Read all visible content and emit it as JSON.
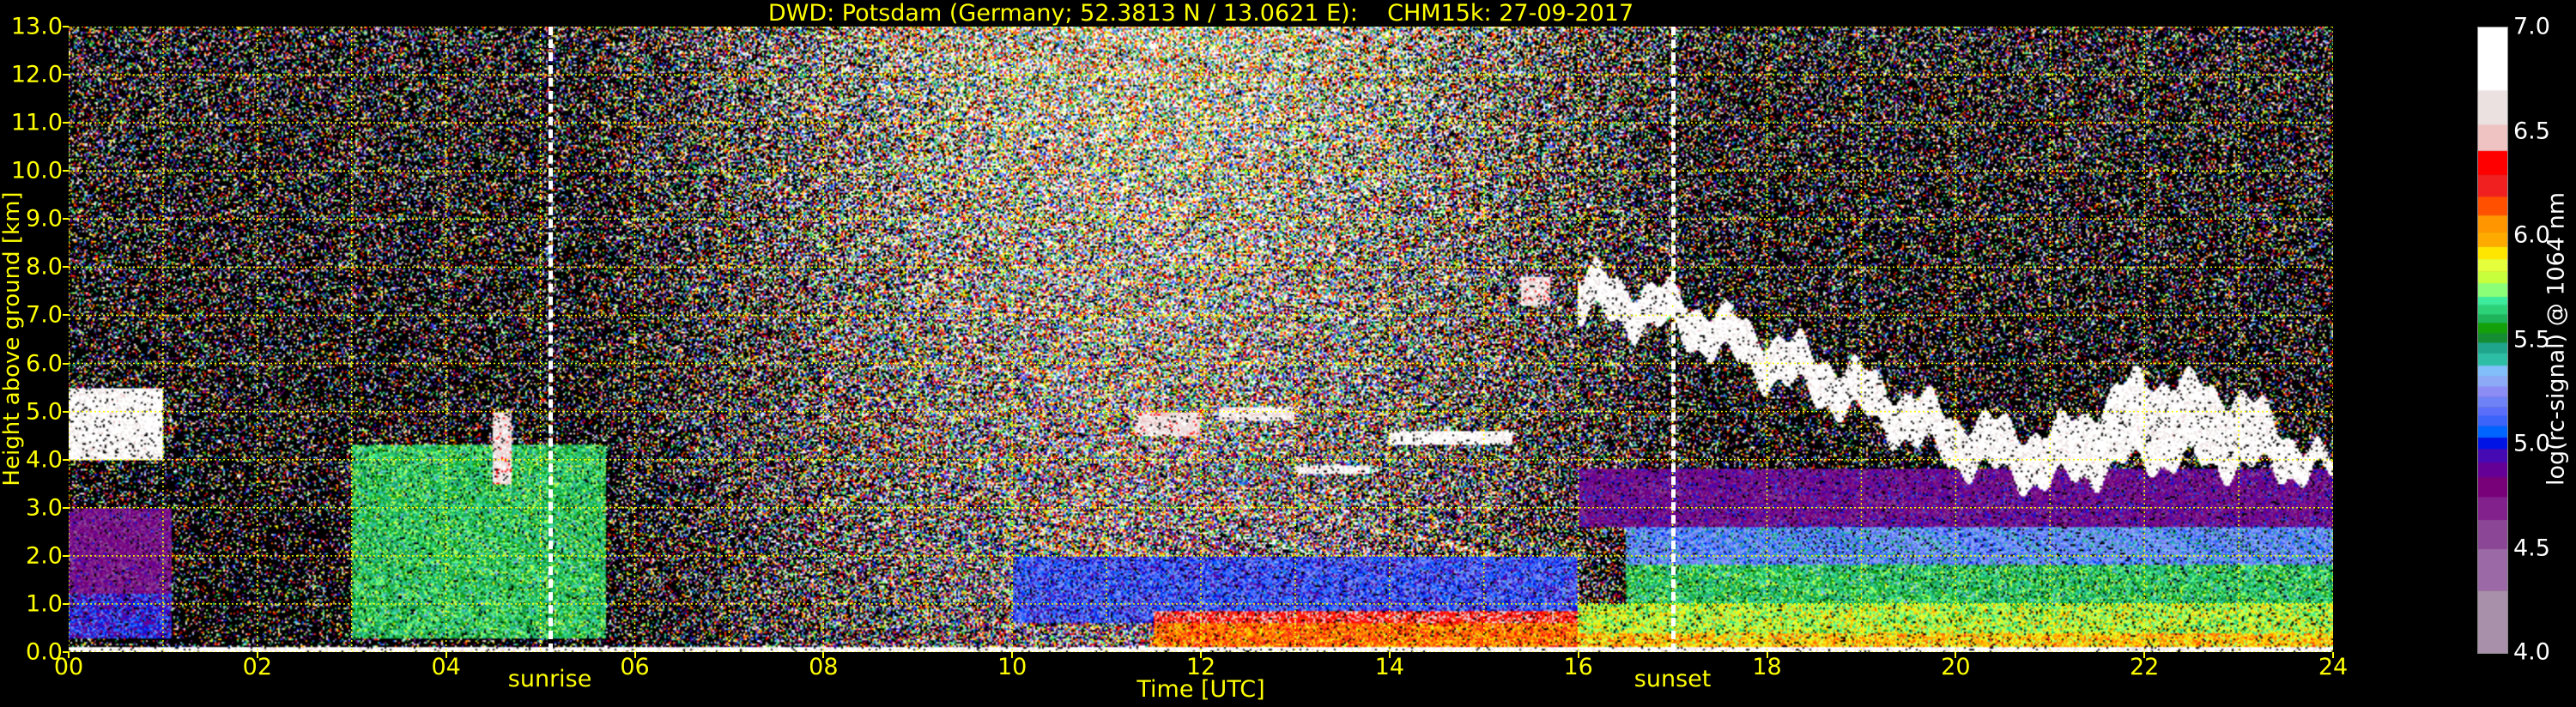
{
  "chart_data": {
    "type": "heatmap",
    "title": "DWD: Potsdam (Germany; 52.3813 N / 13.0621 E):    CHM15k: 27-09-2017",
    "xlabel": "Time [UTC]",
    "ylabel": "Height above ground [km]",
    "xlim": [
      0,
      24
    ],
    "ylim": [
      0,
      13
    ],
    "xticks": [
      "00",
      "02",
      "04",
      "06",
      "08",
      "10",
      "12",
      "14",
      "16",
      "18",
      "20",
      "22",
      "24"
    ],
    "xtick_values": [
      0,
      2,
      4,
      6,
      8,
      10,
      12,
      14,
      16,
      18,
      20,
      22,
      24
    ],
    "yticks": [
      "0.0",
      "1.0",
      "2.0",
      "3.0",
      "4.0",
      "5.0",
      "6.0",
      "7.0",
      "8.0",
      "9.0",
      "10.0",
      "11.0",
      "12.0",
      "13.0"
    ],
    "ytick_values": [
      0,
      1,
      2,
      3,
      4,
      5,
      6,
      7,
      8,
      9,
      10,
      11,
      12,
      13
    ],
    "grid": true,
    "grid_color": "#ffff00",
    "annotations": [
      {
        "label": "sunrise",
        "time": 5.1
      },
      {
        "label": "sunset",
        "time": 17.0
      }
    ],
    "colorbar": {
      "label": "log(rc-signal) @ 1064 nm",
      "range": [
        4.0,
        7.0
      ],
      "ticks": [
        "4.0",
        "4.5",
        "5.0",
        "5.5",
        "6.0",
        "6.5",
        "7.0"
      ],
      "tick_values": [
        4.0,
        4.5,
        5.0,
        5.5,
        6.0,
        6.5,
        7.0
      ],
      "bounds": [
        4.0,
        4.3,
        4.5,
        4.64,
        4.75,
        4.845,
        4.915,
        4.98,
        5.035,
        5.09,
        5.14,
        5.18,
        5.23,
        5.28,
        5.33,
        5.38,
        5.44,
        5.49,
        5.535,
        5.585,
        5.625,
        5.67,
        5.71,
        5.775,
        5.83,
        5.89,
        5.95,
        6.02,
        6.1,
        6.19,
        6.295,
        6.41,
        6.535,
        6.7,
        7.0
      ],
      "colors": [
        "#a890aa",
        "#9b69a5",
        "#8c4696",
        "#82208c",
        "#780078",
        "#640096",
        "#460ab4",
        "#0014e6",
        "#0064ff",
        "#3c64fa",
        "#5a6efa",
        "#6e82f5",
        "#8c8cf5",
        "#8caaf5",
        "#82befa",
        "#2dbea5",
        "#1ea58c",
        "#148c32",
        "#14a00a",
        "#1eb45a",
        "#2dd278",
        "#3ceb9b",
        "#8cff78",
        "#c8ff3c",
        "#e6ff3c",
        "#ffe600",
        "#ffaa00",
        "#ff9600",
        "#ff5000",
        "#f02020",
        "#ff0000",
        "#f0c3c3",
        "#ebe1e1",
        "#ffffff"
      ]
    },
    "layers": [
      {
        "name": "surface",
        "t": [
          0,
          24
        ],
        "z": [
          0.0,
          0.1
        ],
        "value": 6.8
      },
      {
        "t": [
          0,
          1.1
        ],
        "z": [
          0.3,
          1.2
        ],
        "value": 5.0
      },
      {
        "t": [
          0,
          1.1
        ],
        "z": [
          1.2,
          3.0
        ],
        "value": 4.75
      },
      {
        "t": [
          0,
          1.0
        ],
        "z": [
          4.0,
          5.5
        ],
        "value": 6.8
      },
      {
        "t": [
          3.0,
          5.7
        ],
        "z": [
          0.3,
          4.3
        ],
        "value": 5.6
      },
      {
        "t": [
          4.5,
          4.7
        ],
        "z": [
          3.5,
          5.0
        ],
        "value": 6.6
      },
      {
        "t": [
          10.0,
          16.0
        ],
        "z": [
          0.6,
          2.0
        ],
        "value": 5.1
      },
      {
        "t": [
          11.5,
          16.0
        ],
        "z": [
          0.1,
          0.6
        ],
        "value": 6.1
      },
      {
        "t": [
          11.5,
          16.0
        ],
        "z": [
          0.6,
          0.85
        ],
        "value": 6.35
      },
      {
        "t": [
          16.0,
          24.0
        ],
        "z": [
          0.1,
          0.4
        ],
        "value": 5.95
      },
      {
        "t": [
          16.0,
          24.0
        ],
        "z": [
          0.4,
          1.0
        ],
        "value": 5.8
      },
      {
        "t": [
          16.5,
          24.0
        ],
        "z": [
          1.0,
          1.8
        ],
        "value": 5.6
      },
      {
        "t": [
          16.5,
          24.0
        ],
        "z": [
          1.8,
          2.6
        ],
        "value": 5.25
      },
      {
        "t": [
          16.0,
          24.0
        ],
        "z": [
          2.6,
          3.8
        ],
        "value": 4.8
      },
      {
        "t": [
          11.3,
          12.0
        ],
        "z": [
          4.5,
          5.0
        ],
        "value": 6.6
      },
      {
        "t": [
          12.2,
          13.0
        ],
        "z": [
          4.8,
          5.1
        ],
        "value": 6.7
      },
      {
        "t": [
          13.0,
          13.8
        ],
        "z": [
          3.7,
          3.9
        ],
        "value": 6.7
      },
      {
        "t": [
          14.0,
          15.3
        ],
        "z": [
          4.3,
          4.6
        ],
        "value": 6.8
      },
      {
        "t": [
          15.4,
          15.7
        ],
        "z": [
          7.2,
          7.8
        ],
        "value": 6.6
      }
    ],
    "cirrus": {
      "value": 6.8,
      "profile": [
        {
          "t": 16.0,
          "base": 6.6,
          "top": 8.3
        },
        {
          "t": 17.0,
          "base": 6.3,
          "top": 7.8
        },
        {
          "t": 18.0,
          "base": 5.3,
          "top": 7.0
        },
        {
          "t": 19.0,
          "base": 4.5,
          "top": 6.2
        },
        {
          "t": 20.0,
          "base": 3.5,
          "top": 5.3
        },
        {
          "t": 21.0,
          "base": 3.0,
          "top": 5.0
        },
        {
          "t": 22.0,
          "base": 3.2,
          "top": 6.5
        },
        {
          "t": 23.0,
          "base": 3.2,
          "top": 6.0
        },
        {
          "t": 24.0,
          "base": 3.5,
          "top": 4.0
        }
      ]
    }
  }
}
